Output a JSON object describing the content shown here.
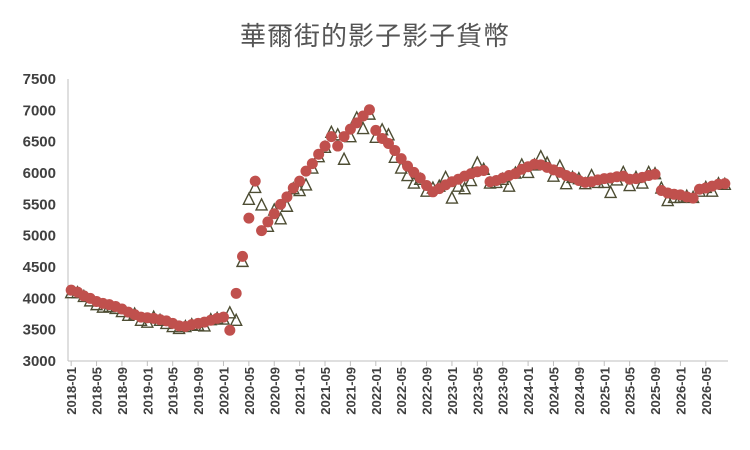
{
  "title": "華爾街的影子影子貨幣",
  "chart_data": {
    "type": "scatter",
    "title": "華爾街的影子影子貨幣",
    "xlabel": "",
    "ylabel": "",
    "ylim": [
      3000,
      7500
    ],
    "yticks": [
      3000,
      3500,
      4000,
      4500,
      5000,
      5500,
      6000,
      6500,
      7000,
      7500
    ],
    "x_start": "2018-01",
    "x_tick_labels": [
      "2018-01",
      "2018-05",
      "2018-09",
      "2019-01",
      "2019-05",
      "2019-09",
      "2020-01",
      "2020-05",
      "2020-09",
      "2021-01",
      "2021-05",
      "2021-09",
      "2022-01",
      "2022-05",
      "2022-09",
      "2023-01",
      "2023-05",
      "2023-09",
      "2024-01",
      "2024-05",
      "2024-09",
      "2025-01",
      "2025-05",
      "2025-09",
      "2026-01",
      "2026-05"
    ],
    "grid": false,
    "legend": "none",
    "series": [
      {
        "marker": "circle",
        "color": "#c0504d",
        "values": [
          4130,
          4100,
          4040,
          4000,
          3950,
          3920,
          3900,
          3870,
          3830,
          3780,
          3740,
          3700,
          3690,
          3680,
          3660,
          3640,
          3600,
          3560,
          3550,
          3580,
          3600,
          3620,
          3650,
          3680,
          3700,
          3490,
          4080,
          4670,
          5280,
          5870,
          5080,
          5220,
          5350,
          5500,
          5620,
          5760,
          5870,
          6030,
          6150,
          6300,
          6430,
          6580,
          6430,
          6580,
          6700,
          6800,
          6910,
          7010,
          6680,
          6550,
          6470,
          6360,
          6230,
          6110,
          6010,
          5920,
          5800,
          5700,
          5750,
          5810,
          5860,
          5900,
          5950,
          5990,
          6020,
          6040,
          5860,
          5880,
          5920,
          5960,
          5990,
          6060,
          6100,
          6140,
          6130,
          6090,
          6050,
          6010,
          5960,
          5930,
          5880,
          5850,
          5860,
          5890,
          5910,
          5920,
          5940,
          5950,
          5900,
          5910,
          5930,
          5960,
          5980,
          5720,
          5680,
          5660,
          5650,
          5620,
          5600,
          5740,
          5760,
          5790,
          5820,
          5830
        ]
      },
      {
        "marker": "triangle",
        "color": "#4d4d33",
        "values": [
          4080,
          4080,
          4020,
          3950,
          3890,
          3850,
          3860,
          3830,
          3780,
          3720,
          3740,
          3640,
          3610,
          3690,
          3640,
          3590,
          3540,
          3510,
          3540,
          3570,
          3560,
          3550,
          3650,
          3670,
          3660,
          3760,
          3640,
          4580,
          5570,
          5760,
          5480,
          5140,
          5400,
          5260,
          5460,
          5740,
          5710,
          5800,
          6070,
          6250,
          6400,
          6640,
          6600,
          6210,
          6570,
          6870,
          6700,
          6930,
          6560,
          6680,
          6600,
          6240,
          6070,
          5950,
          5830,
          5890,
          5700,
          5750,
          5780,
          5920,
          5590,
          5780,
          5740,
          5870,
          6150,
          6050,
          5830,
          5840,
          5890,
          5780,
          5990,
          6120,
          6000,
          6120,
          6250,
          6150,
          5940,
          6100,
          5820,
          5920,
          5900,
          5820,
          5950,
          5840,
          5840,
          5680,
          5880,
          6000,
          5790,
          5920,
          5830,
          6000,
          5980,
          5750,
          5550,
          5600,
          5600,
          5620,
          5600,
          5700,
          5760,
          5700,
          5820,
          5810
        ]
      }
    ]
  }
}
